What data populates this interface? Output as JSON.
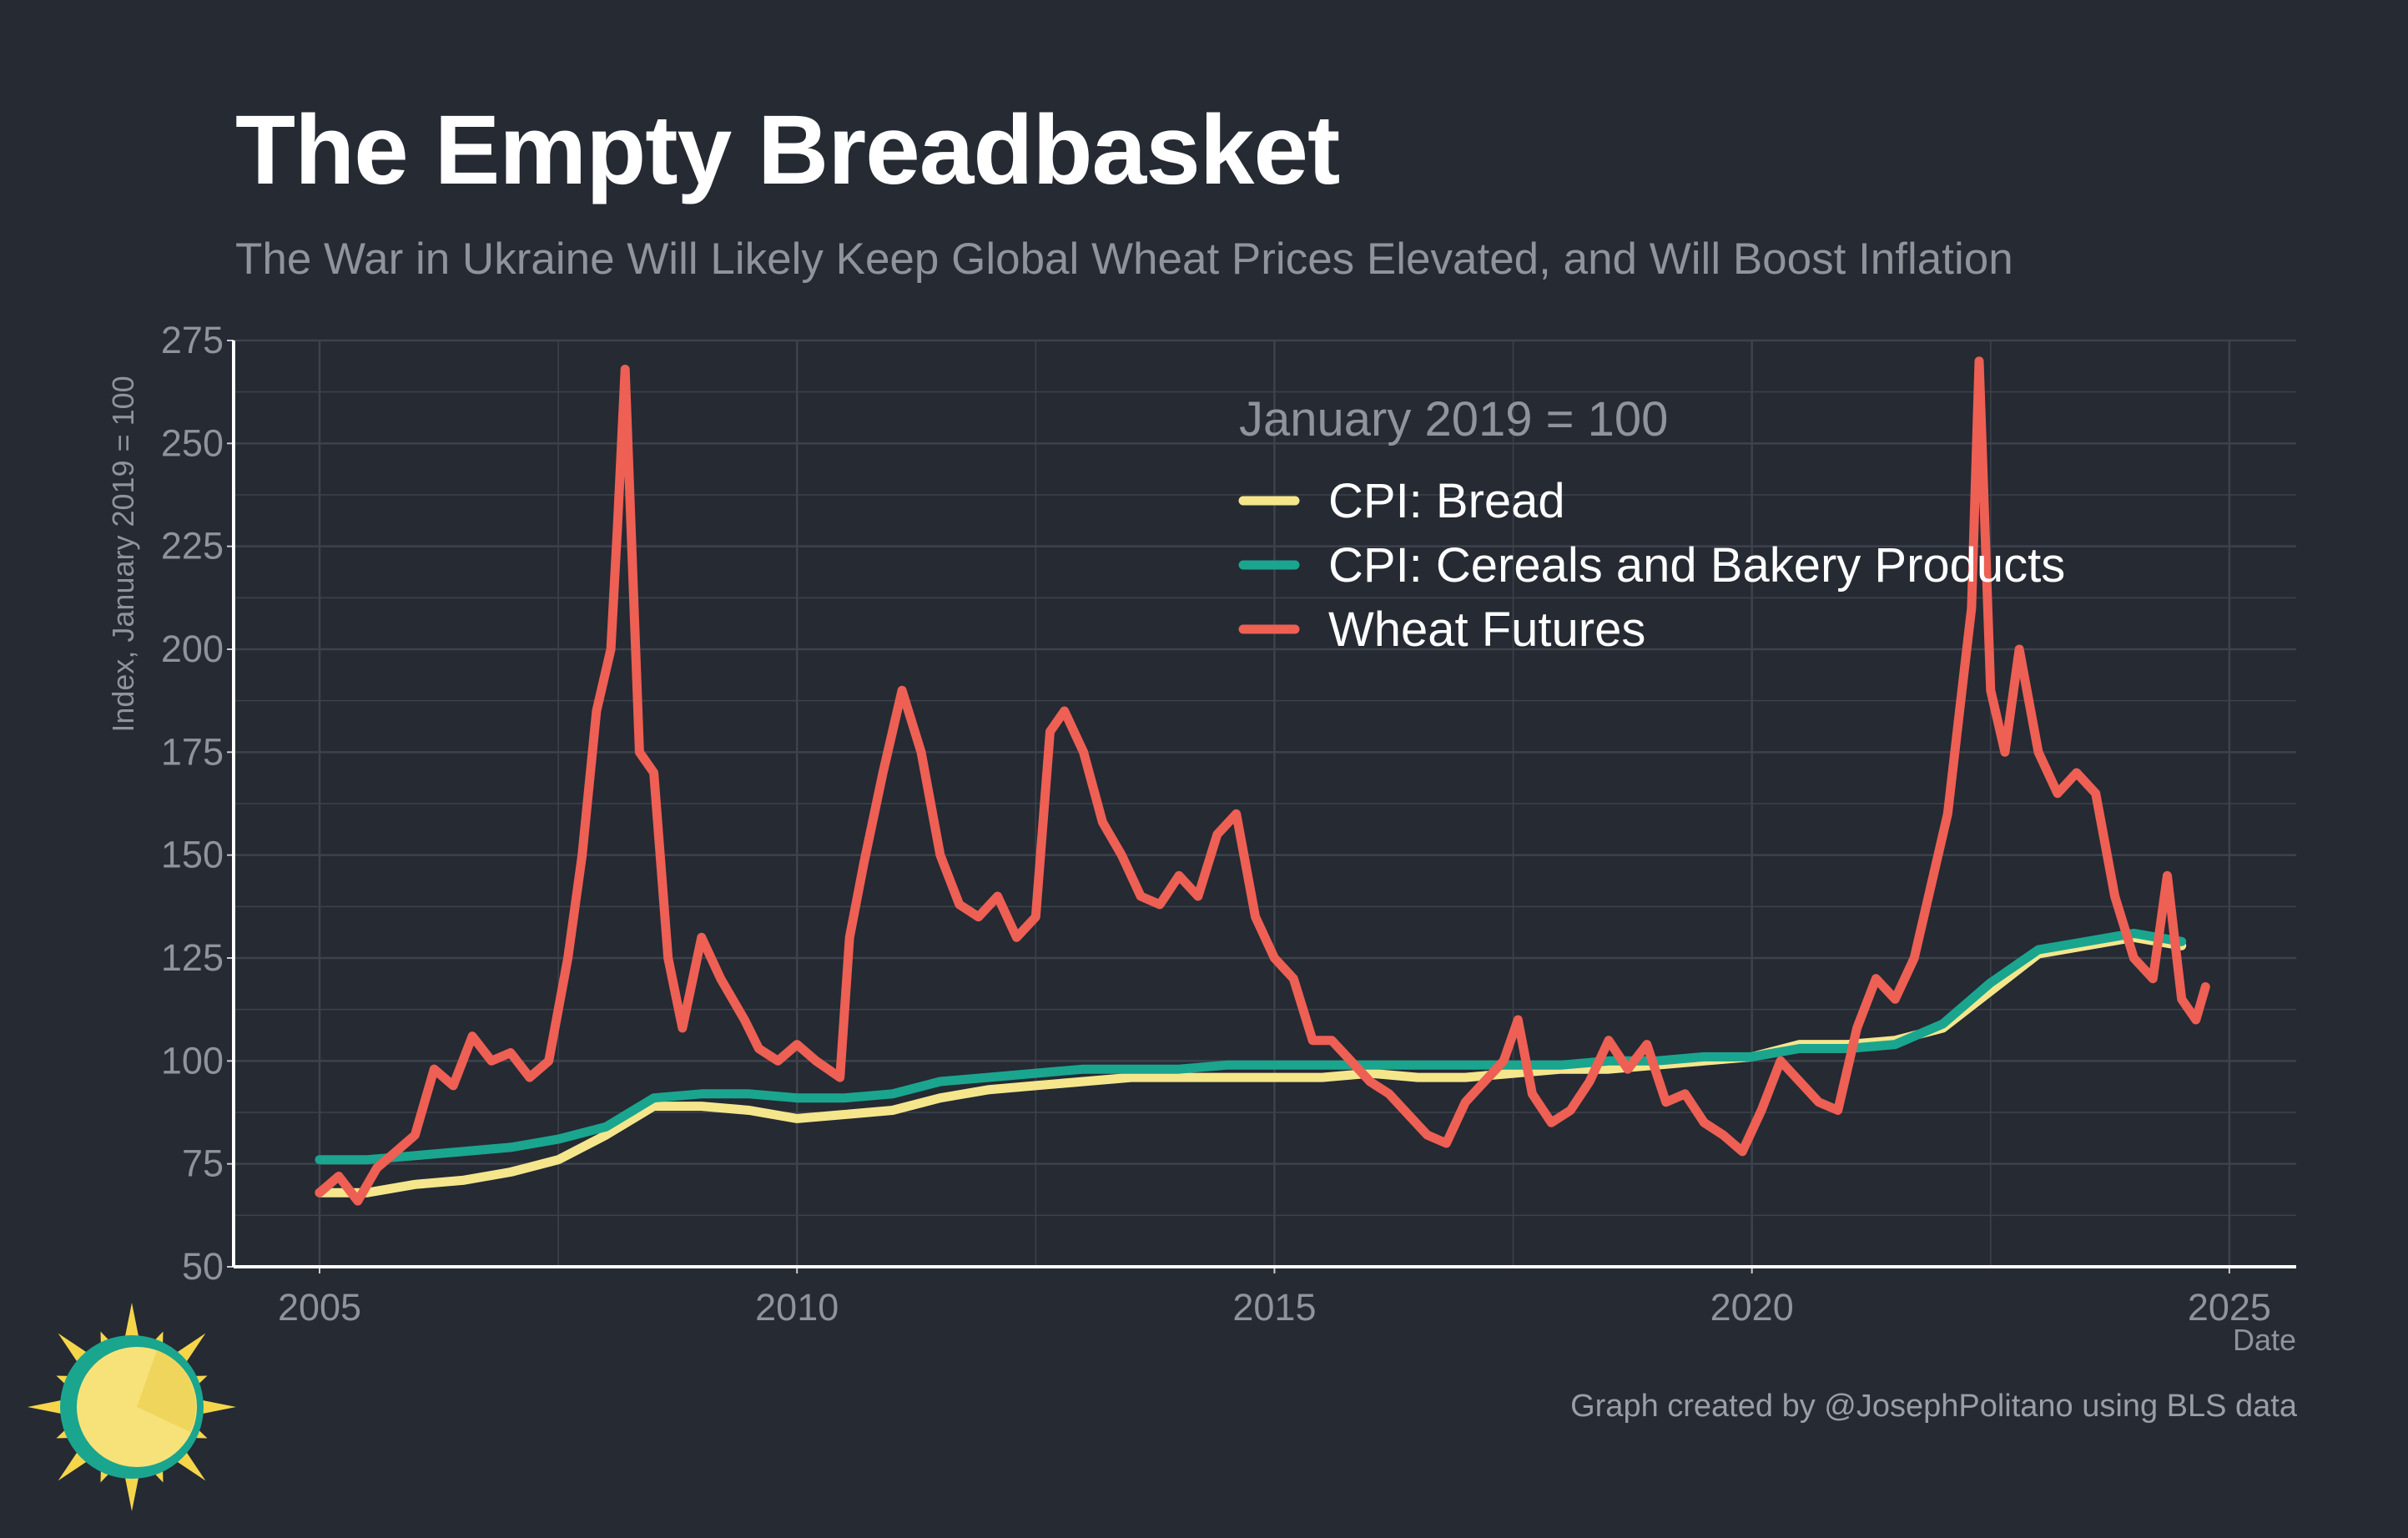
{
  "header": {
    "title": "The Empty Breadbasket",
    "subtitle": "The War in Ukraine Will Likely Keep Global Wheat Prices Elevated, and Will Boost Inflation"
  },
  "footer": {
    "caption": "Graph created by @JosephPolitano using BLS data",
    "logo_icon": "sun-icon"
  },
  "colors": {
    "background": "#252a33",
    "grid": "#3d424b",
    "bread": "#f5e68c",
    "cereals": "#1aa58f",
    "wheat": "#ee5f54"
  },
  "chart_data": {
    "type": "line",
    "title": "The Empty Breadbasket",
    "subtitle": "The War in Ukraine Will Likely Keep Global Wheat Prices Elevated, and Will Boost Inflation",
    "xlabel": "Date",
    "ylabel": "Index, January 2019 = 100",
    "xlim": [
      2004.1,
      2025.7
    ],
    "ylim": [
      50,
      275
    ],
    "x_ticks": [
      "2005",
      "2010",
      "2015",
      "2020",
      "2025"
    ],
    "y_ticks": [
      "50",
      "75",
      "100",
      "125",
      "150",
      "175",
      "200",
      "225",
      "250",
      "275"
    ],
    "grid": true,
    "legend": {
      "title": "January 2019 = 100",
      "position": "top-center",
      "entries": [
        "CPI: Bread",
        "CPI: Cereals and Bakery Products",
        "Wheat Futures"
      ]
    },
    "series": [
      {
        "name": "CPI: Bread",
        "color": "#f5e68c",
        "x": [
          2005.0,
          2005.5,
          2006.0,
          2006.5,
          2007.0,
          2007.5,
          2008.0,
          2008.5,
          2009.0,
          2009.5,
          2010.0,
          2010.5,
          2011.0,
          2011.5,
          2012.0,
          2012.5,
          2013.0,
          2013.5,
          2014.0,
          2014.5,
          2015.0,
          2015.5,
          2016.0,
          2016.5,
          2017.0,
          2017.5,
          2018.0,
          2018.5,
          2019.0,
          2019.5,
          2020.0,
          2020.5,
          2021.0,
          2021.5,
          2022.0,
          2022.5,
          2023.0,
          2023.5,
          2024.0,
          2024.5
        ],
        "y": [
          68,
          68,
          70,
          71,
          73,
          76,
          82,
          89,
          89,
          88,
          86,
          87,
          88,
          91,
          93,
          94,
          95,
          96,
          96,
          96,
          96,
          96,
          97,
          96,
          96,
          97,
          98,
          98,
          99,
          100,
          101,
          104,
          104,
          105,
          108,
          117,
          126,
          128,
          130,
          128
        ]
      },
      {
        "name": "CPI: Cereals and Bakery Products",
        "color": "#1aa58f",
        "x": [
          2005.0,
          2005.5,
          2006.0,
          2006.5,
          2007.0,
          2007.5,
          2008.0,
          2008.5,
          2009.0,
          2009.5,
          2010.0,
          2010.5,
          2011.0,
          2011.5,
          2012.0,
          2012.5,
          2013.0,
          2013.5,
          2014.0,
          2014.5,
          2015.0,
          2015.5,
          2016.0,
          2016.5,
          2017.0,
          2017.5,
          2018.0,
          2018.5,
          2019.0,
          2019.5,
          2020.0,
          2020.5,
          2021.0,
          2021.5,
          2022.0,
          2022.5,
          2023.0,
          2023.5,
          2024.0,
          2024.5
        ],
        "y": [
          76,
          76,
          77,
          78,
          79,
          81,
          84,
          91,
          92,
          92,
          91,
          91,
          92,
          95,
          96,
          97,
          98,
          98,
          98,
          99,
          99,
          99,
          99,
          99,
          99,
          99,
          99,
          100,
          100,
          101,
          101,
          103,
          103,
          104,
          109,
          119,
          127,
          129,
          131,
          129
        ]
      },
      {
        "name": "Wheat Futures",
        "color": "#ee5f54",
        "x": [
          2005.0,
          2005.2,
          2005.4,
          2005.6,
          2005.8,
          2006.0,
          2006.2,
          2006.4,
          2006.6,
          2006.8,
          2007.0,
          2007.2,
          2007.4,
          2007.6,
          2007.75,
          2007.9,
          2008.05,
          2008.12,
          2008.2,
          2008.35,
          2008.5,
          2008.65,
          2008.8,
          2009.0,
          2009.2,
          2009.45,
          2009.6,
          2009.8,
          2010.0,
          2010.2,
          2010.45,
          2010.55,
          2010.7,
          2010.9,
          2011.1,
          2011.3,
          2011.5,
          2011.7,
          2011.9,
          2012.1,
          2012.3,
          2012.5,
          2012.65,
          2012.8,
          2013.0,
          2013.2,
          2013.4,
          2013.6,
          2013.8,
          2014.0,
          2014.2,
          2014.4,
          2014.6,
          2014.8,
          2015.0,
          2015.2,
          2015.4,
          2015.6,
          2015.8,
          2016.0,
          2016.2,
          2016.4,
          2016.6,
          2016.8,
          2017.0,
          2017.2,
          2017.4,
          2017.55,
          2017.7,
          2017.9,
          2018.1,
          2018.3,
          2018.5,
          2018.7,
          2018.9,
          2019.1,
          2019.3,
          2019.5,
          2019.7,
          2019.9,
          2020.1,
          2020.3,
          2020.5,
          2020.7,
          2020.9,
          2021.1,
          2021.3,
          2021.5,
          2021.7,
          2021.9,
          2022.05,
          2022.2,
          2022.3,
          2022.38,
          2022.5,
          2022.65,
          2022.8,
          2023.0,
          2023.2,
          2023.4,
          2023.6,
          2023.8,
          2024.0,
          2024.2,
          2024.35,
          2024.5,
          2024.65,
          2024.75
        ],
        "y": [
          68,
          72,
          66,
          74,
          78,
          82,
          98,
          94,
          106,
          100,
          102,
          96,
          100,
          125,
          150,
          185,
          200,
          230,
          268,
          175,
          170,
          125,
          108,
          130,
          120,
          110,
          103,
          100,
          104,
          100,
          96,
          130,
          148,
          170,
          190,
          175,
          150,
          138,
          135,
          140,
          130,
          135,
          180,
          185,
          175,
          158,
          150,
          140,
          138,
          145,
          140,
          155,
          160,
          135,
          125,
          120,
          105,
          105,
          100,
          95,
          92,
          87,
          82,
          80,
          90,
          95,
          100,
          110,
          92,
          85,
          88,
          95,
          105,
          98,
          104,
          90,
          92,
          85,
          82,
          78,
          88,
          100,
          95,
          90,
          88,
          108,
          120,
          115,
          125,
          145,
          160,
          190,
          210,
          270,
          190,
          175,
          200,
          175,
          165,
          170,
          165,
          140,
          125,
          120,
          145,
          115,
          110,
          118
        ]
      }
    ]
  }
}
